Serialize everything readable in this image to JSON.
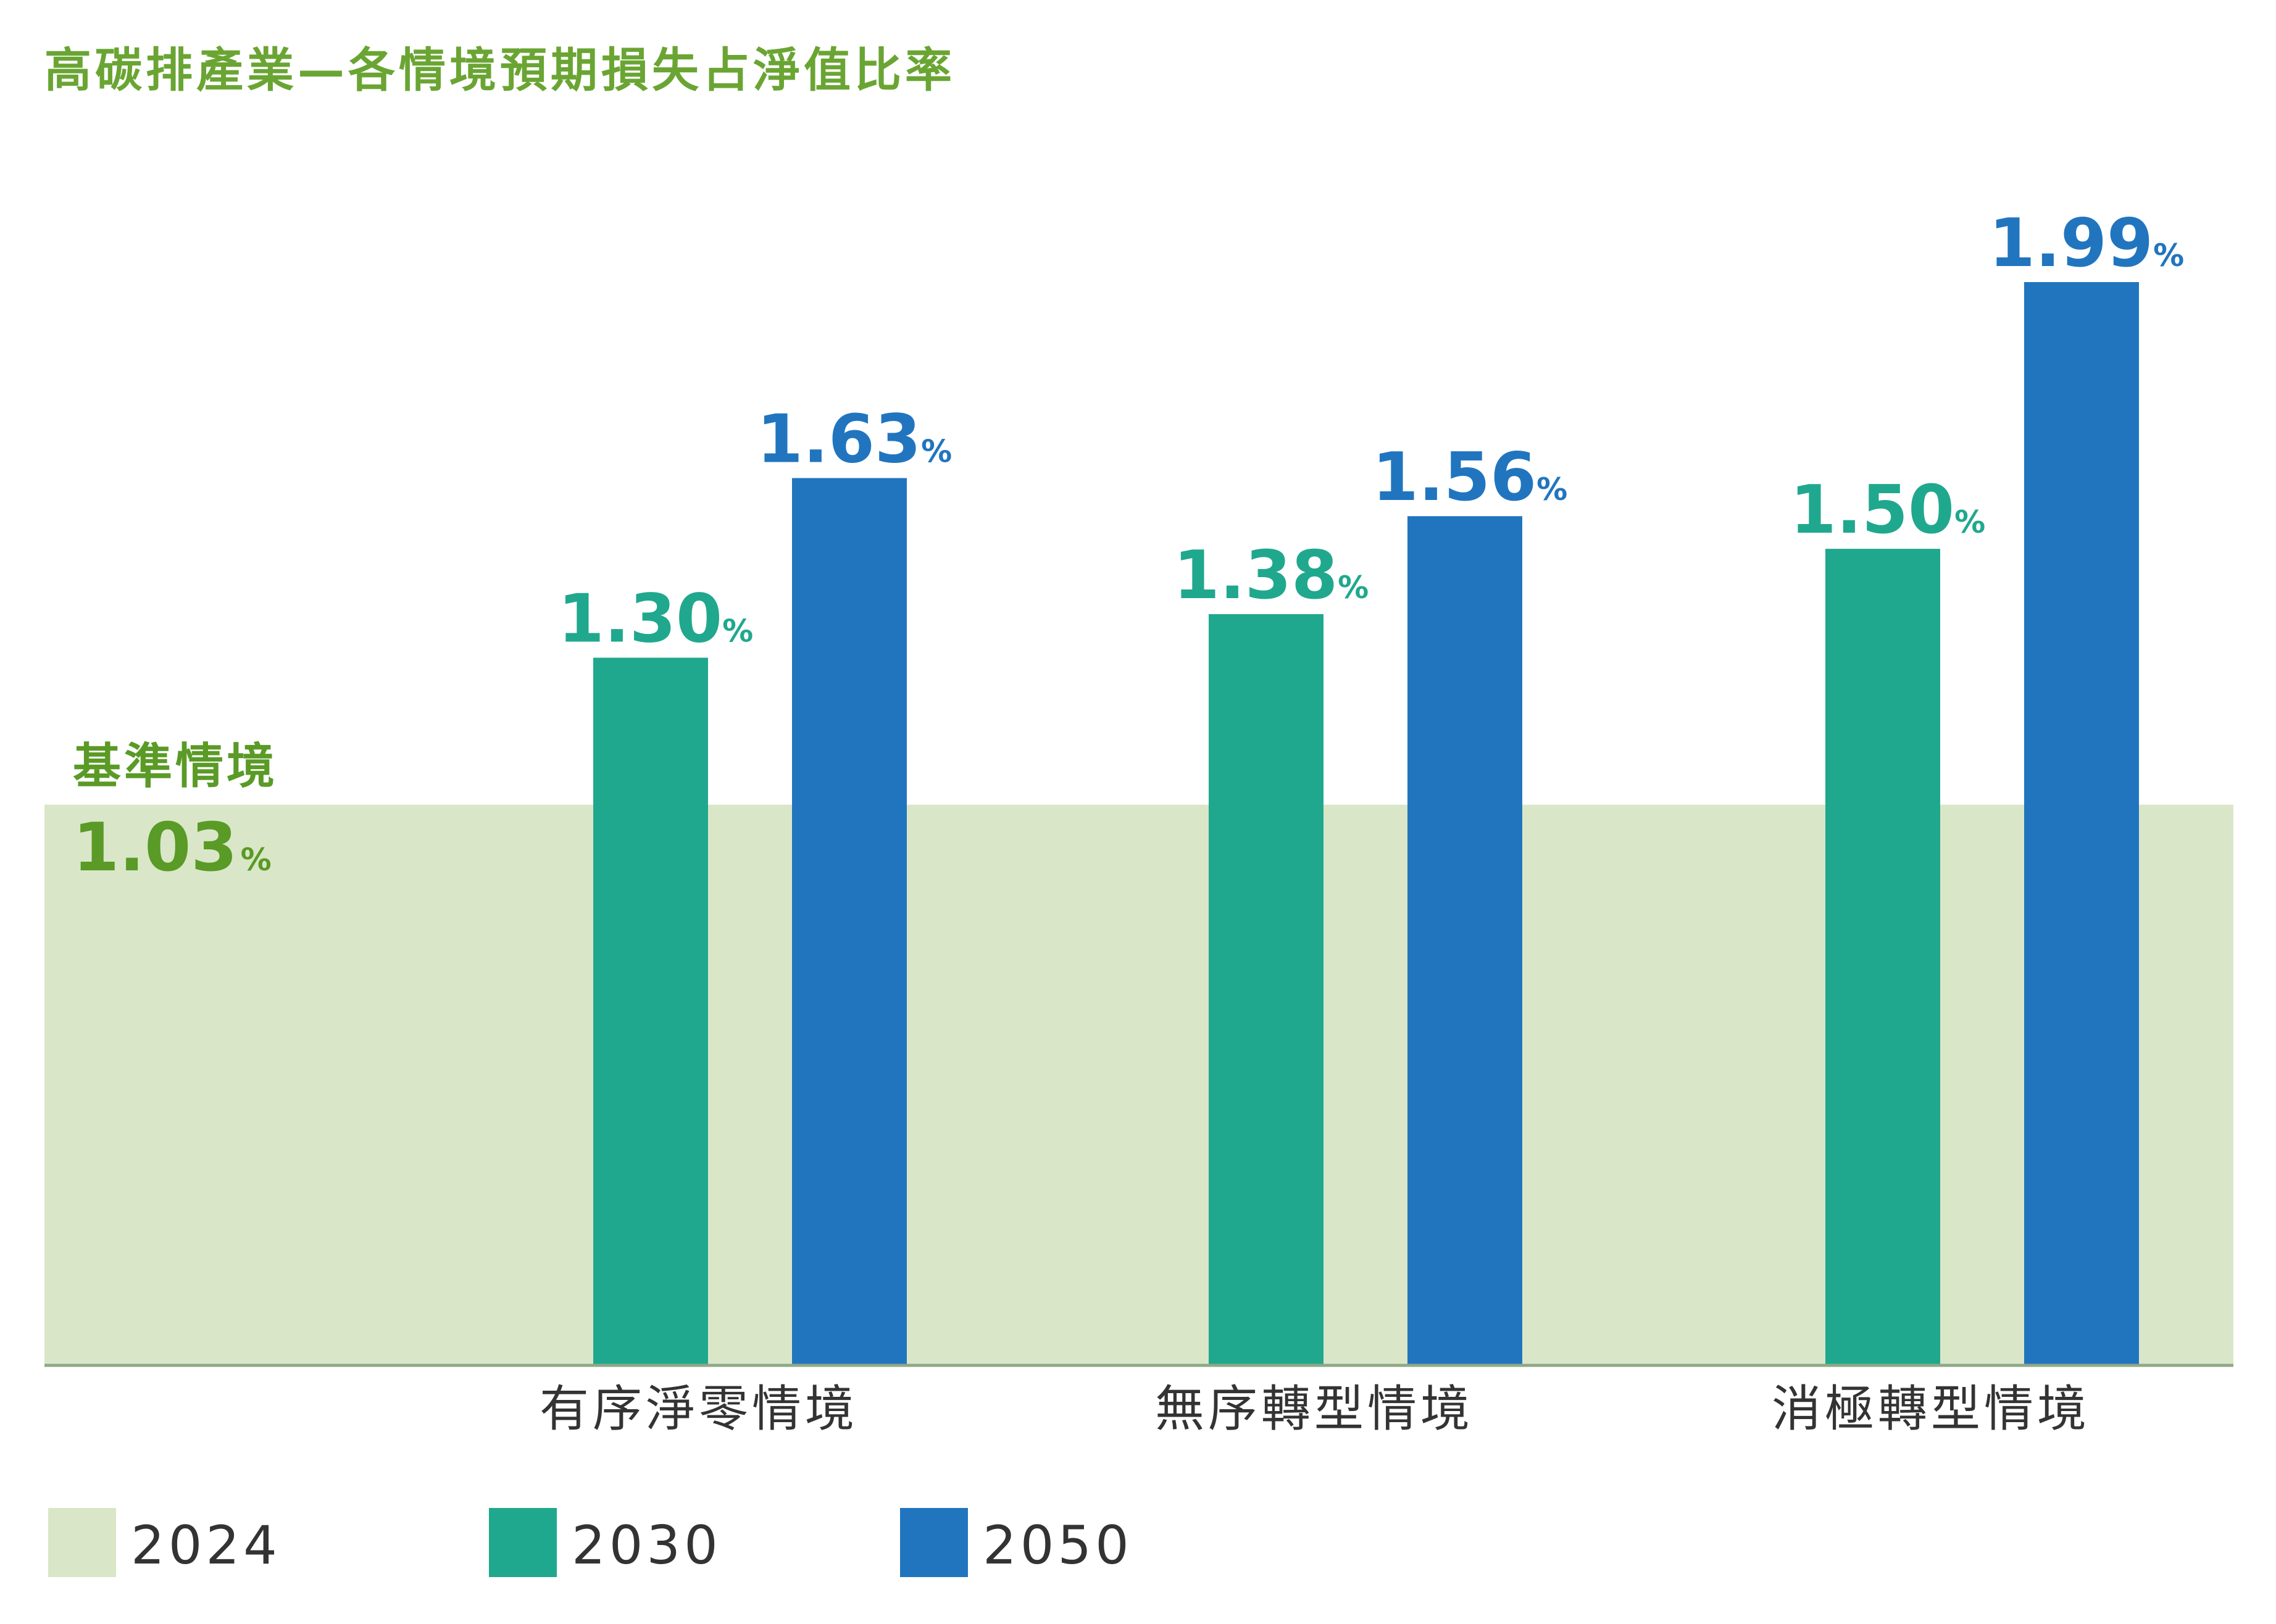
{
  "chart_data": {
    "type": "bar",
    "title": "高碳排產業—各情境預期損失占淨值比率",
    "unit": "%",
    "categories": [
      "有序淨零情境",
      "無序轉型情境",
      "消極轉型情境"
    ],
    "baseline": {
      "name": "基準情境",
      "value": 1.03,
      "value_text": "1.03",
      "series_name": "2024"
    },
    "series": [
      {
        "name": "2030",
        "values": [
          1.3,
          1.38,
          1.5
        ],
        "labels": [
          "1.30",
          "1.38",
          "1.50"
        ]
      },
      {
        "name": "2050",
        "values": [
          1.63,
          1.56,
          1.99
        ],
        "labels": [
          "1.63",
          "1.56",
          "1.99"
        ]
      }
    ],
    "legend": [
      "2024",
      "2030",
      "2050"
    ],
    "ylim": [
      0,
      2.1
    ],
    "colors": {
      "title": "#6aa533",
      "baseline_fill": "#d9e7c8",
      "baseline_text": "#5a9a26",
      "axis": "#8fa888",
      "series_2030": "#20a88e",
      "series_2050": "#2175bf",
      "category_text": "#333333",
      "legend_text": "#333333"
    }
  }
}
